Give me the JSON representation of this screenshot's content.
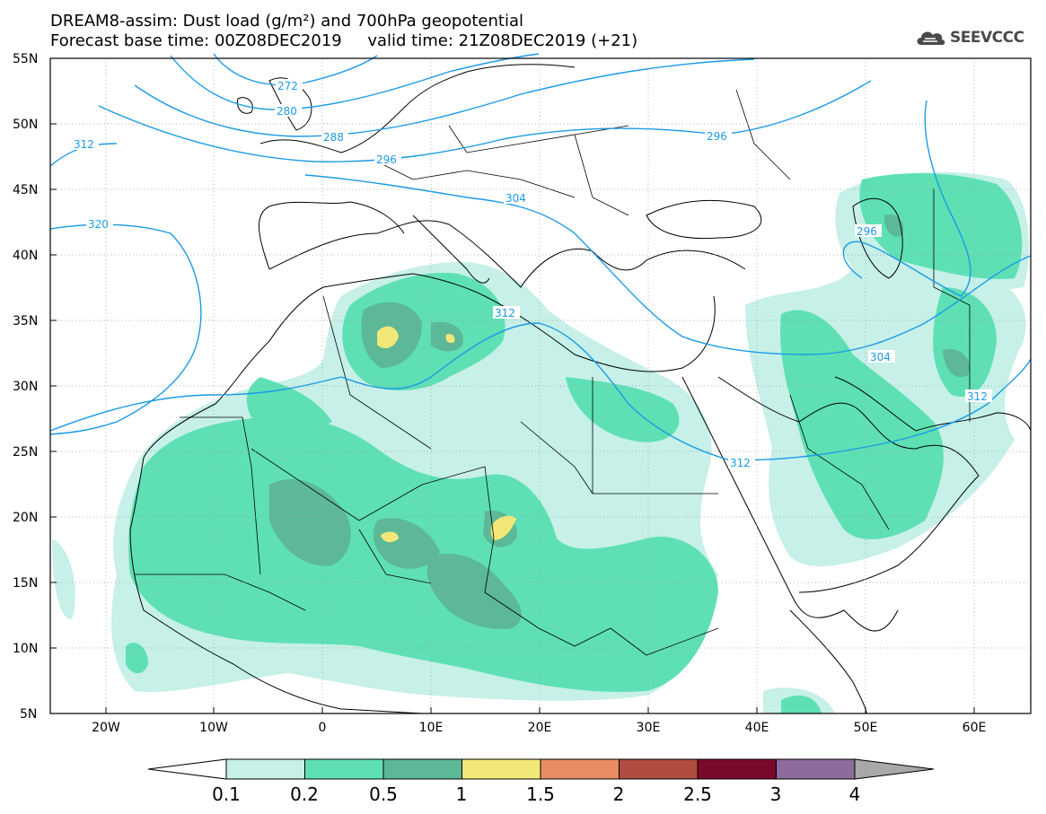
{
  "header": {
    "title_line1": "DREAM8-assim: Dust load (g/m²) and 700hPa geopotential",
    "title_line2": "Forecast base time: 00Z08DEC2019     valid time: 21Z08DEC2019 (+21)"
  },
  "logo": {
    "text": "SEEVCCC",
    "icon": "cloud-icon"
  },
  "axes": {
    "lat_labels": [
      "55N",
      "50N",
      "45N",
      "40N",
      "35N",
      "30N",
      "25N",
      "20N",
      "15N",
      "10N",
      "5N"
    ],
    "lon_labels": [
      "20W",
      "10W",
      "0",
      "10E",
      "20E",
      "30E",
      "40E",
      "50E",
      "60E"
    ]
  },
  "contours": [
    {
      "label": "272"
    },
    {
      "label": "280"
    },
    {
      "label": "288"
    },
    {
      "label": "296"
    },
    {
      "label": "296"
    },
    {
      "label": "296"
    },
    {
      "label": "304"
    },
    {
      "label": "304"
    },
    {
      "label": "312"
    },
    {
      "label": "312"
    },
    {
      "label": "312"
    },
    {
      "label": "312"
    },
    {
      "label": "320"
    }
  ],
  "colorbar": {
    "labels": [
      "0.1",
      "0.2",
      "0.5",
      "1",
      "1.5",
      "2",
      "2.5",
      "3",
      "4"
    ],
    "colors": [
      "#c6f0e8",
      "#5ee0b4",
      "#5cb896",
      "#f2e878",
      "#e88c64",
      "#b04c40",
      "#7a0a2c",
      "#8c6c9c",
      "#a8a8a8"
    ],
    "open_end_low": "#ffffff"
  },
  "colors": {
    "contour": "#1a9be6",
    "dust_01": "#c6f0e8",
    "dust_02": "#5ee0b4",
    "dust_05": "#5cb896",
    "dust_1": "#f2e878"
  }
}
